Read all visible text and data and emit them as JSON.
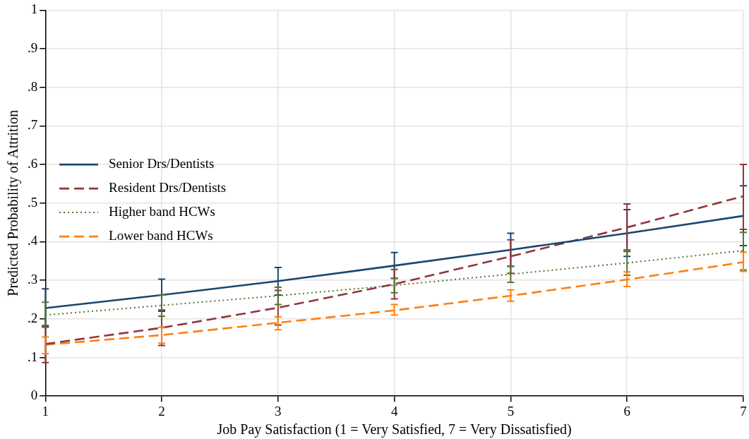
{
  "chart_data": {
    "type": "line",
    "xlabel": "Job Pay Satisfaction (1 = Very Satisfied, 7 = Very Dissatisfied)",
    "ylabel": "Predicted Probability of Attrition",
    "x": [
      1,
      2,
      3,
      4,
      5,
      6,
      7
    ],
    "xlim": [
      1,
      7
    ],
    "xticks": [
      1,
      2,
      3,
      4,
      5,
      6,
      7
    ],
    "ylim": [
      0,
      1
    ],
    "yticks": [
      0,
      {
        "value": 0.1,
        "label": ".1"
      },
      {
        "value": 0.2,
        "label": ".2"
      },
      {
        "value": 0.3,
        "label": ".3"
      },
      {
        "value": 0.4,
        "label": ".4"
      },
      {
        "value": 0.5,
        "label": ".5"
      },
      {
        "value": 0.6,
        "label": ".6"
      },
      {
        "value": 0.7,
        "label": ".7"
      },
      {
        "value": 0.8,
        "label": ".8"
      },
      {
        "value": 0.9,
        "label": ".9"
      },
      1
    ],
    "grid": true,
    "legend": "left",
    "marker": "none",
    "series": [
      {
        "name": "Senior Drs/Dentists",
        "color": "#1a476f",
        "line_style": "solid",
        "values": [
          0.228,
          0.262,
          0.298,
          0.338,
          0.379,
          0.422,
          0.467
        ],
        "errors": [
          [
            0.18,
            0.278
          ],
          [
            0.22,
            0.303
          ],
          [
            0.262,
            0.333
          ],
          [
            0.305,
            0.372
          ],
          [
            0.336,
            0.422
          ],
          [
            0.362,
            0.483
          ],
          [
            0.39,
            0.545
          ]
        ]
      },
      {
        "name": "Resident Drs/Dentists",
        "color": "#90353b",
        "line_style": "dashed",
        "values": [
          0.135,
          0.177,
          0.229,
          0.29,
          0.362,
          0.437,
          0.518
        ],
        "errors": [
          [
            0.087,
            0.183
          ],
          [
            0.131,
            0.223
          ],
          [
            0.184,
            0.274
          ],
          [
            0.252,
            0.328
          ],
          [
            0.318,
            0.405
          ],
          [
            0.375,
            0.498
          ],
          [
            0.432,
            0.6
          ]
        ]
      },
      {
        "name": "Higher band HCWs",
        "color": "#55752f",
        "line_style": "dotted",
        "values": [
          0.21,
          0.235,
          0.26,
          0.287,
          0.316,
          0.345,
          0.377
        ],
        "errors": [
          [
            0.178,
            0.243
          ],
          [
            0.207,
            0.262
          ],
          [
            0.237,
            0.282
          ],
          [
            0.268,
            0.306
          ],
          [
            0.295,
            0.337
          ],
          [
            0.313,
            0.379
          ],
          [
            0.327,
            0.424
          ]
        ]
      },
      {
        "name": "Lower band HCWs",
        "color": "#ff7f0e",
        "line_style": "dashed",
        "values": [
          0.133,
          0.158,
          0.19,
          0.222,
          0.26,
          0.302,
          0.347
        ],
        "errors": [
          [
            0.11,
            0.153
          ],
          [
            0.137,
            0.178
          ],
          [
            0.172,
            0.205
          ],
          [
            0.21,
            0.237
          ],
          [
            0.246,
            0.275
          ],
          [
            0.284,
            0.322
          ],
          [
            0.323,
            0.373
          ]
        ]
      }
    ]
  }
}
